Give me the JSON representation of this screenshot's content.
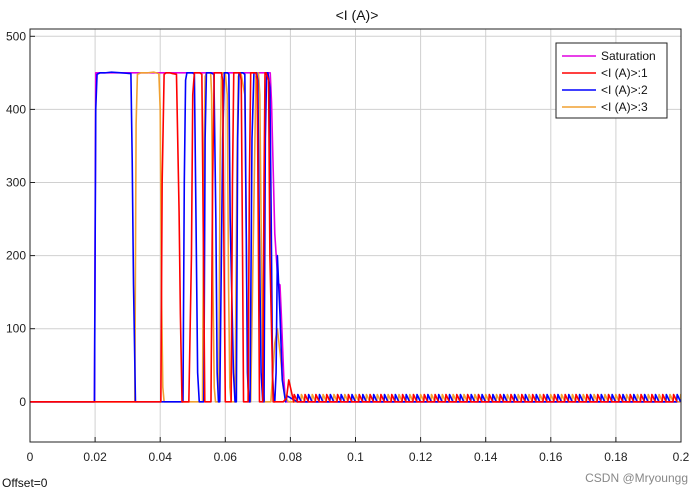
{
  "footer": {
    "offset_label": "Offset=0",
    "watermark": "CSDN @Mryoungg"
  },
  "chart_data": {
    "type": "line",
    "title": "<I (A)>",
    "xlabel": "",
    "ylabel": "",
    "xlim": [
      0,
      0.2
    ],
    "ylim": [
      -55,
      510
    ],
    "x_ticks": [
      0,
      0.02,
      0.04,
      0.06,
      0.08,
      0.1,
      0.12,
      0.14,
      0.16,
      0.18,
      0.2
    ],
    "x_tick_labels": [
      "0",
      "0.02",
      "0.04",
      "0.06",
      "0.08",
      "0.1",
      "0.12",
      "0.14",
      "0.16",
      "0.18",
      "0.2"
    ],
    "y_ticks": [
      0,
      100,
      200,
      300,
      400,
      500
    ],
    "y_tick_labels": [
      "0",
      "100",
      "200",
      "300",
      "400",
      "500"
    ],
    "grid": true,
    "legend_position": "top-right",
    "series": [
      {
        "name": "Saturation",
        "color": "#e100e1",
        "x": [
          0,
          0.0198,
          0.0202,
          0.0738,
          0.0742,
          0.0752,
          0.0762,
          0.0768,
          0.0772,
          0.078,
          0.0785,
          0.2
        ],
        "y": [
          0,
          0,
          450,
          450,
          410,
          230,
          162,
          160,
          120,
          30,
          0,
          0
        ]
      },
      {
        "name": "<I (A)>:1",
        "color": "#ff0000",
        "x": [
          0,
          0.0402,
          0.0406,
          0.0412,
          0.0418,
          0.043,
          0.0438,
          0.045,
          0.0458,
          0.0462,
          0.0467,
          0.0472,
          0.0488,
          0.0496,
          0.05,
          0.0505,
          0.0522,
          0.0528,
          0.0533,
          0.0537,
          0.0556,
          0.0561,
          0.0566,
          0.057,
          0.0588,
          0.0592,
          0.0596,
          0.06,
          0.0618,
          0.0622,
          0.0626,
          0.063,
          0.0645,
          0.0649,
          0.0653,
          0.0656,
          0.067,
          0.0674,
          0.0678,
          0.0681,
          0.0694,
          0.0698,
          0.0702,
          0.0705,
          0.0715,
          0.0719,
          0.0722,
          0.0725,
          0.0733,
          0.0737,
          0.0747,
          0.0768,
          0.0778,
          0.0788,
          0.0795,
          0.08,
          0.0806,
          0.2
        ],
        "y": [
          0,
          0,
          300,
          448,
          450,
          450,
          449,
          448,
          260,
          120,
          0,
          0,
          0,
          200,
          420,
          450,
          450,
          448,
          200,
          0,
          0,
          300,
          450,
          450,
          450,
          440,
          200,
          0,
          0,
          300,
          450,
          450,
          450,
          440,
          200,
          0,
          0,
          300,
          450,
          450,
          450,
          440,
          200,
          0,
          0,
          300,
          450,
          450,
          440,
          200,
          0,
          0,
          0,
          5,
          30,
          20,
          8,
          8
        ]
      },
      {
        "name": "<I (A)>:2",
        "color": "#0000ff",
        "x": [
          0,
          0.0198,
          0.0202,
          0.0206,
          0.0215,
          0.023,
          0.025,
          0.028,
          0.031,
          0.0314,
          0.0318,
          0.0324,
          0.033,
          0.0338,
          0.047,
          0.0474,
          0.0478,
          0.0482,
          0.05,
          0.0505,
          0.051,
          0.0515,
          0.052,
          0.0534,
          0.0538,
          0.0542,
          0.0546,
          0.0556,
          0.0565,
          0.0571,
          0.0575,
          0.0579,
          0.0583,
          0.0592,
          0.0597,
          0.0603,
          0.0607,
          0.0611,
          0.0615,
          0.0625,
          0.063,
          0.0634,
          0.0638,
          0.0642,
          0.0646,
          0.0654,
          0.066,
          0.0664,
          0.0668,
          0.0672,
          0.0676,
          0.0682,
          0.0688,
          0.0692,
          0.0696,
          0.07,
          0.0704,
          0.071,
          0.0715,
          0.0719,
          0.0723,
          0.0727,
          0.0731,
          0.0737,
          0.0741,
          0.0745,
          0.0749,
          0.0752,
          0.0756,
          0.076,
          0.0768,
          0.0775,
          0.0785,
          0.079,
          0.2
        ],
        "y": [
          0,
          0,
          400,
          448,
          450,
          450,
          451,
          450,
          449,
          330,
          160,
          0,
          0,
          0,
          0,
          300,
          440,
          450,
          450,
          448,
          250,
          40,
          0,
          0,
          360,
          450,
          450,
          450,
          448,
          250,
          40,
          0,
          0,
          360,
          450,
          450,
          450,
          448,
          250,
          40,
          0,
          0,
          360,
          450,
          450,
          450,
          448,
          250,
          40,
          0,
          0,
          360,
          450,
          450,
          450,
          440,
          250,
          40,
          0,
          0,
          360,
          450,
          450,
          430,
          250,
          40,
          0,
          0,
          40,
          200,
          120,
          30,
          0,
          8,
          8
        ]
      },
      {
        "name": "<I (A)>:3",
        "color": "#f0a030",
        "x": [
          0,
          0.0322,
          0.0326,
          0.033,
          0.034,
          0.036,
          0.038,
          0.0396,
          0.04,
          0.0404,
          0.0408,
          0.0412,
          0.042,
          0.053,
          0.0534,
          0.0538,
          0.0542,
          0.0555,
          0.0558,
          0.0562,
          0.0566,
          0.057,
          0.058,
          0.0584,
          0.0588,
          0.0592,
          0.06,
          0.0606,
          0.061,
          0.0614,
          0.0618,
          0.063,
          0.0636,
          0.064,
          0.0644,
          0.0648,
          0.066,
          0.0666,
          0.067,
          0.0674,
          0.0678,
          0.069,
          0.0694,
          0.0698,
          0.0702,
          0.0706,
          0.0712,
          0.0716,
          0.072,
          0.0724,
          0.073,
          0.074,
          0.0752,
          0.076,
          0.077,
          0.0778,
          0.0786,
          0.0794,
          0.08,
          0.2
        ],
        "y": [
          0,
          0,
          380,
          448,
          450,
          450,
          451,
          449,
          400,
          150,
          20,
          0,
          0,
          0,
          330,
          445,
          450,
          450,
          420,
          160,
          20,
          0,
          0,
          330,
          445,
          450,
          450,
          420,
          160,
          20,
          0,
          0,
          330,
          445,
          450,
          450,
          420,
          160,
          20,
          0,
          0,
          330,
          445,
          450,
          450,
          420,
          160,
          20,
          0,
          0,
          0,
          0,
          80,
          100,
          60,
          20,
          5,
          0,
          0,
          0
        ]
      }
    ],
    "ripple": {
      "start": 0.081,
      "period": 0.00333,
      "phases": [
        0,
        0.00111,
        0.00222
      ],
      "low": 0,
      "high": 10
    }
  }
}
